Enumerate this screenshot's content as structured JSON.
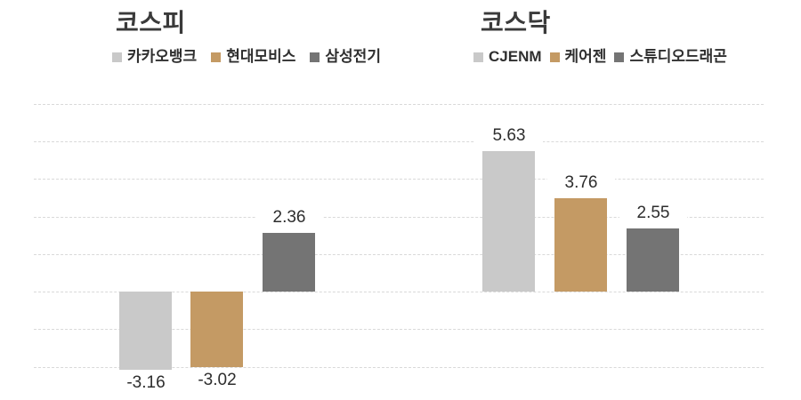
{
  "page": {
    "background": "#ffffff"
  },
  "styles": {
    "gridline_color": "#d9d9d9",
    "title_color": "#3a3a3a",
    "legend_text_color": "#2f2f2f",
    "value_label_color": "#2d2d2d",
    "palette": [
      "#c9c9c9",
      "#c49a64",
      "#747474"
    ]
  },
  "chart_data": [
    {
      "type": "bar",
      "title": "코스피",
      "categories": [
        "카카오뱅크",
        "현대모비스",
        "삼성전기"
      ],
      "values": [
        -3.16,
        -3.02,
        2.36
      ],
      "data_labels": [
        "-3.16",
        "-3.02",
        "2.36"
      ],
      "colors": [
        "#c9c9c9",
        "#c49a64",
        "#747474"
      ],
      "xlabel": "",
      "ylabel": "",
      "ylim": [
        -4.5,
        7.5
      ],
      "gridlines_y": [
        7.5,
        6,
        4.5,
        3,
        1.5,
        0,
        -1.5,
        -3
      ],
      "grid": true,
      "legend_position": "top",
      "baseline": 0
    },
    {
      "type": "bar",
      "title": "코스닥",
      "categories": [
        "CJENM",
        "케어젠",
        "스튜디오드래곤"
      ],
      "values": [
        5.63,
        3.76,
        2.55
      ],
      "data_labels": [
        "5.63",
        "3.76",
        "2.55"
      ],
      "colors": [
        "#c9c9c9",
        "#c49a64",
        "#747474"
      ],
      "xlabel": "",
      "ylabel": "",
      "ylim": [
        -4.5,
        7.5
      ],
      "gridlines_y": [
        7.5,
        6,
        4.5,
        3,
        1.5,
        0,
        -1.5,
        -3
      ],
      "grid": true,
      "legend_position": "top",
      "baseline": 0
    }
  ]
}
